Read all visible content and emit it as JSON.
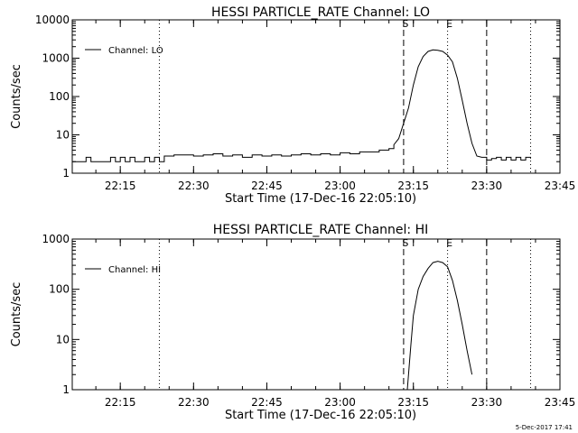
{
  "figure": {
    "timestamp": "5-Dec-2017 17:41"
  },
  "chart_data": [
    {
      "type": "line",
      "title": "HESSI PARTICLE_RATE Channel: LO",
      "xlabel": "Start Time (17-Dec-16 22:05:10)",
      "ylabel": "Counts/sec",
      "yscale": "log",
      "ylim": [
        1,
        10000
      ],
      "xlim": [
        "22:05:10",
        "23:45:00"
      ],
      "x_ticks": [
        "22:15",
        "22:30",
        "22:45",
        "23:00",
        "23:15",
        "23:30",
        "23:45"
      ],
      "y_ticks": [
        "1",
        "10",
        "100",
        "1000",
        "10000"
      ],
      "legend": {
        "position": "top-left",
        "entries": [
          "Channel: LO"
        ]
      },
      "markers": [
        {
          "time": "22:23",
          "style": "dotted",
          "label": ""
        },
        {
          "time": "23:13",
          "style": "dashed",
          "label": "S"
        },
        {
          "time": "23:22",
          "style": "dotted",
          "label": "E"
        },
        {
          "time": "23:30",
          "style": "dashed",
          "label": ""
        },
        {
          "time": "23:39",
          "style": "dotted",
          "label": ""
        }
      ],
      "series": [
        {
          "name": "Channel: LO",
          "x": [
            "22:05:10",
            "22:07",
            "22:08",
            "22:09",
            "22:10",
            "22:12",
            "22:13",
            "22:14",
            "22:15",
            "22:16",
            "22:17",
            "22:18",
            "22:19",
            "22:20",
            "22:21",
            "22:22",
            "22:23",
            "22:24",
            "22:26",
            "22:28",
            "22:30",
            "22:32",
            "22:34",
            "22:36",
            "22:38",
            "22:40",
            "22:42",
            "22:44",
            "22:46",
            "22:48",
            "22:50",
            "22:52",
            "22:54",
            "22:56",
            "22:58",
            "23:00",
            "23:02",
            "23:04",
            "23:06",
            "23:08",
            "23:10",
            "23:11",
            "23:12",
            "23:13",
            "23:14",
            "23:15",
            "23:16",
            "23:17",
            "23:18",
            "23:19",
            "23:20",
            "23:21",
            "23:22",
            "23:23",
            "23:24",
            "23:25",
            "23:26",
            "23:27",
            "23:28",
            "23:29",
            "23:30",
            "23:31",
            "23:32",
            "23:33",
            "23:34",
            "23:35",
            "23:36",
            "23:37",
            "23:38",
            "23:39"
          ],
          "y": [
            2,
            2,
            2.6,
            2,
            2,
            2,
            2.6,
            2,
            2.6,
            2,
            2.6,
            2,
            2,
            2.6,
            2,
            2.6,
            2,
            2.8,
            3,
            3,
            2.8,
            3,
            3.2,
            2.8,
            3,
            2.6,
            3,
            2.8,
            3,
            2.8,
            3,
            3.2,
            3,
            3.2,
            3,
            3.4,
            3.2,
            3.6,
            3.6,
            4,
            4.4,
            5.5,
            8,
            20,
            50,
            200,
            600,
            1100,
            1500,
            1650,
            1600,
            1500,
            1200,
            800,
            300,
            80,
            20,
            6,
            2.8,
            2.6,
            2.2,
            2.4,
            2.6,
            2.2,
            2.6,
            2.2,
            2.6,
            2.2,
            2.6,
            2.4
          ]
        }
      ]
    },
    {
      "type": "line",
      "title": "HESSI PARTICLE_RATE Channel: HI",
      "xlabel": "Start Time (17-Dec-16 22:05:10)",
      "ylabel": "Counts/sec",
      "yscale": "log",
      "ylim": [
        1,
        1000
      ],
      "xlim": [
        "22:05:10",
        "23:45:00"
      ],
      "x_ticks": [
        "22:15",
        "22:30",
        "22:45",
        "23:00",
        "23:15",
        "23:30",
        "23:45"
      ],
      "y_ticks": [
        "1",
        "10",
        "100",
        "1000"
      ],
      "legend": {
        "position": "top-left",
        "entries": [
          "Channel: HI"
        ]
      },
      "markers": [
        {
          "time": "22:23",
          "style": "dotted",
          "label": ""
        },
        {
          "time": "23:13",
          "style": "dashed",
          "label": "S"
        },
        {
          "time": "23:22",
          "style": "dotted",
          "label": "E"
        },
        {
          "time": "23:30",
          "style": "dashed",
          "label": ""
        },
        {
          "time": "23:39",
          "style": "dotted",
          "label": ""
        }
      ],
      "series": [
        {
          "name": "Channel: HI",
          "x": [
            "23:13:45",
            "23:14:30",
            "23:15",
            "23:16",
            "23:17",
            "23:18",
            "23:19",
            "23:20",
            "23:21",
            "23:22",
            "23:23",
            "23:24",
            "23:25",
            "23:26",
            "23:27"
          ],
          "y": [
            1,
            8,
            30,
            100,
            180,
            260,
            340,
            360,
            340,
            280,
            150,
            60,
            20,
            6,
            2
          ]
        }
      ]
    }
  ]
}
